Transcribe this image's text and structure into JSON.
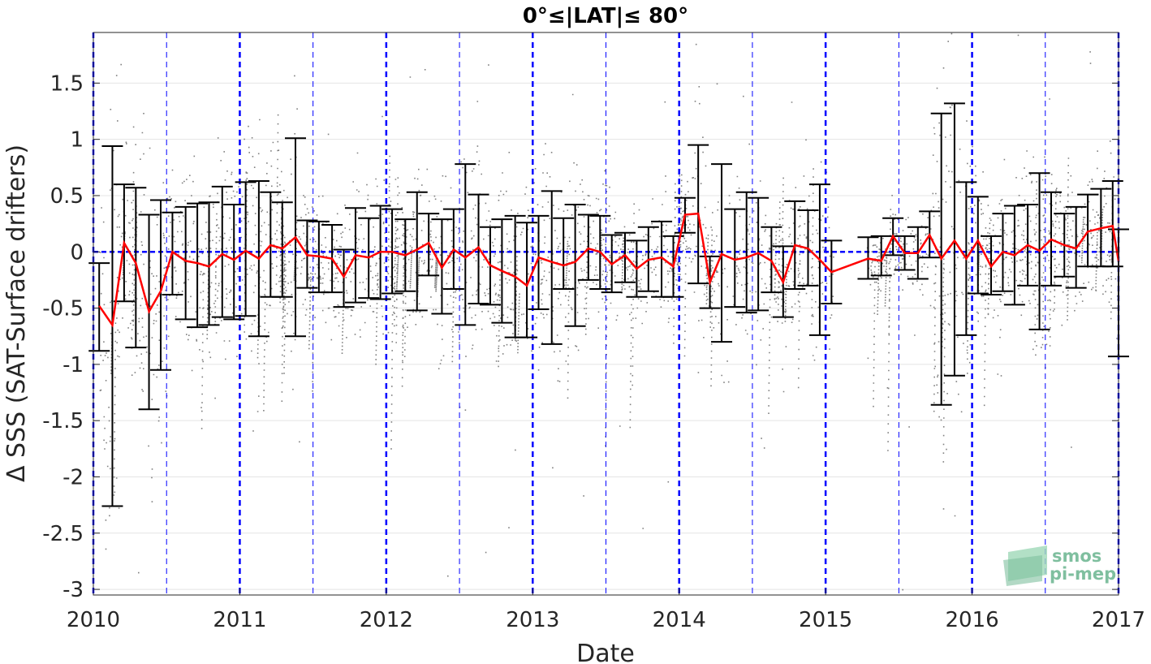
{
  "chart_data": {
    "type": "scatter",
    "title": "0°≤|LAT|≤ 80°",
    "xlabel": "Date",
    "ylabel": "Δ SSS (SAT-Surface drifters)",
    "xlim": [
      2010,
      2017
    ],
    "ylim": [
      -3.05,
      1.95
    ],
    "x_ticks": [
      2010,
      2011,
      2012,
      2013,
      2014,
      2015,
      2016,
      2017
    ],
    "y_ticks": [
      1.5,
      1,
      0.5,
      0,
      -0.5,
      -1,
      -1.5,
      -2,
      -2.5,
      -3
    ],
    "y_tick_labels": [
      "1.5",
      "1",
      "0.5",
      "0",
      "-0.5",
      "-1",
      "-1.5",
      "-2",
      "-2.5",
      "-3"
    ],
    "grid": "horizontal",
    "year_lines": [
      2010,
      2011,
      2012,
      2013,
      2014,
      2015,
      2016,
      2017
    ],
    "half_year_lines": [
      2010.5,
      2011.5,
      2012.5,
      2013.5,
      2014.5,
      2015.5,
      2016.5
    ],
    "zero_line": 0,
    "series": [
      {
        "kind": "monthly_median_with_errorbars",
        "color": "#ff0000",
        "points": [
          {
            "x": 2010.04,
            "y": -0.48,
            "lo": -0.88,
            "hi": -0.1
          },
          {
            "x": 2010.13,
            "y": -0.65,
            "lo": -2.26,
            "hi": 0.94
          },
          {
            "x": 2010.21,
            "y": 0.08,
            "lo": -0.44,
            "hi": 0.6
          },
          {
            "x": 2010.29,
            "y": -0.1,
            "lo": -0.85,
            "hi": 0.57
          },
          {
            "x": 2010.38,
            "y": -0.53,
            "lo": -1.4,
            "hi": 0.33
          },
          {
            "x": 2010.46,
            "y": -0.35,
            "lo": -1.05,
            "hi": 0.46
          },
          {
            "x": 2010.54,
            "y": 0.0,
            "lo": -0.38,
            "hi": 0.35
          },
          {
            "x": 2010.63,
            "y": -0.08,
            "lo": -0.6,
            "hi": 0.4
          },
          {
            "x": 2010.71,
            "y": -0.1,
            "lo": -0.67,
            "hi": 0.43
          },
          {
            "x": 2010.79,
            "y": -0.13,
            "lo": -0.65,
            "hi": 0.44
          },
          {
            "x": 2010.88,
            "y": -0.02,
            "lo": -0.58,
            "hi": 0.58
          },
          {
            "x": 2010.96,
            "y": -0.07,
            "lo": -0.6,
            "hi": 0.42
          },
          {
            "x": 2011.04,
            "y": 0.01,
            "lo": -0.57,
            "hi": 0.62
          },
          {
            "x": 2011.13,
            "y": -0.06,
            "lo": -0.75,
            "hi": 0.63
          },
          {
            "x": 2011.21,
            "y": 0.06,
            "lo": -0.4,
            "hi": 0.53
          },
          {
            "x": 2011.29,
            "y": 0.03,
            "lo": -0.4,
            "hi": 0.44
          },
          {
            "x": 2011.38,
            "y": 0.13,
            "lo": -0.75,
            "hi": 1.01
          },
          {
            "x": 2011.46,
            "y": -0.03,
            "lo": -0.32,
            "hi": 0.28
          },
          {
            "x": 2011.54,
            "y": -0.04,
            "lo": -0.36,
            "hi": 0.27
          },
          {
            "x": 2011.63,
            "y": -0.06,
            "lo": -0.36,
            "hi": 0.24
          },
          {
            "x": 2011.71,
            "y": -0.22,
            "lo": -0.49,
            "hi": 0.02
          },
          {
            "x": 2011.79,
            "y": -0.03,
            "lo": -0.45,
            "hi": 0.39
          },
          {
            "x": 2011.88,
            "y": -0.05,
            "lo": -0.41,
            "hi": 0.3
          },
          {
            "x": 2011.96,
            "y": 0.0,
            "lo": -0.42,
            "hi": 0.41
          },
          {
            "x": 2012.04,
            "y": 0.0,
            "lo": -0.37,
            "hi": 0.38
          },
          {
            "x": 2012.13,
            "y": -0.03,
            "lo": -0.35,
            "hi": 0.29
          },
          {
            "x": 2012.21,
            "y": 0.02,
            "lo": -0.52,
            "hi": 0.53
          },
          {
            "x": 2012.29,
            "y": 0.08,
            "lo": -0.21,
            "hi": 0.34
          },
          {
            "x": 2012.38,
            "y": -0.14,
            "lo": -0.55,
            "hi": 0.29
          },
          {
            "x": 2012.46,
            "y": 0.02,
            "lo": -0.33,
            "hi": 0.38
          },
          {
            "x": 2012.54,
            "y": -0.05,
            "lo": -0.65,
            "hi": 0.78
          },
          {
            "x": 2012.63,
            "y": 0.04,
            "lo": -0.46,
            "hi": 0.51
          },
          {
            "x": 2012.71,
            "y": -0.12,
            "lo": -0.47,
            "hi": 0.22
          },
          {
            "x": 2012.79,
            "y": -0.17,
            "lo": -0.63,
            "hi": 0.29
          },
          {
            "x": 2012.88,
            "y": -0.22,
            "lo": -0.76,
            "hi": 0.32
          },
          {
            "x": 2012.96,
            "y": -0.3,
            "lo": -0.76,
            "hi": 0.26
          },
          {
            "x": 2013.04,
            "y": -0.05,
            "lo": -0.51,
            "hi": 0.32
          },
          {
            "x": 2013.13,
            "y": -0.09,
            "lo": -0.82,
            "hi": 0.54
          },
          {
            "x": 2013.21,
            "y": -0.12,
            "lo": -0.33,
            "hi": 0.3
          },
          {
            "x": 2013.29,
            "y": -0.09,
            "lo": -0.66,
            "hi": 0.42
          },
          {
            "x": 2013.38,
            "y": 0.03,
            "lo": -0.25,
            "hi": 0.33
          },
          {
            "x": 2013.46,
            "y": 0.0,
            "lo": -0.33,
            "hi": 0.32
          },
          {
            "x": 2013.54,
            "y": -0.11,
            "lo": -0.36,
            "hi": 0.15
          },
          {
            "x": 2013.63,
            "y": -0.03,
            "lo": -0.27,
            "hi": 0.17
          },
          {
            "x": 2013.71,
            "y": -0.15,
            "lo": -0.4,
            "hi": 0.1
          },
          {
            "x": 2013.79,
            "y": -0.07,
            "lo": -0.35,
            "hi": 0.22
          },
          {
            "x": 2013.88,
            "y": -0.05,
            "lo": -0.4,
            "hi": 0.27
          },
          {
            "x": 2013.96,
            "y": -0.13,
            "lo": -0.4,
            "hi": 0.14
          },
          {
            "x": 2014.04,
            "y": 0.33,
            "lo": 0.17,
            "hi": 0.48
          },
          {
            "x": 2014.13,
            "y": 0.34,
            "lo": -0.28,
            "hi": 0.95
          },
          {
            "x": 2014.21,
            "y": -0.27,
            "lo": -0.5,
            "hi": -0.04
          },
          {
            "x": 2014.29,
            "y": -0.02,
            "lo": -0.8,
            "hi": 0.78
          },
          {
            "x": 2014.38,
            "y": -0.07,
            "lo": -0.49,
            "hi": 0.38
          },
          {
            "x": 2014.46,
            "y": -0.05,
            "lo": -0.54,
            "hi": 0.53
          },
          {
            "x": 2014.54,
            "y": -0.01,
            "lo": -0.52,
            "hi": 0.48
          },
          {
            "x": 2014.63,
            "y": -0.08,
            "lo": -0.36,
            "hi": 0.22
          },
          {
            "x": 2014.71,
            "y": -0.27,
            "lo": -0.58,
            "hi": 0.05
          },
          {
            "x": 2014.79,
            "y": 0.06,
            "lo": -0.33,
            "hi": 0.45
          },
          {
            "x": 2014.88,
            "y": 0.03,
            "lo": -0.3,
            "hi": 0.37
          },
          {
            "x": 2014.96,
            "y": -0.07,
            "lo": -0.74,
            "hi": 0.6
          },
          {
            "x": 2015.04,
            "y": -0.18,
            "lo": -0.46,
            "hi": 0.1
          },
          {
            "x": 2015.29,
            "y": -0.06,
            "lo": -0.24,
            "hi": 0.13
          },
          {
            "x": 2015.38,
            "y": -0.08,
            "lo": -0.21,
            "hi": 0.14
          },
          {
            "x": 2015.46,
            "y": 0.14,
            "lo": -0.03,
            "hi": 0.3
          },
          {
            "x": 2015.54,
            "y": -0.01,
            "lo": -0.16,
            "hi": 0.14
          },
          {
            "x": 2015.63,
            "y": -0.01,
            "lo": -0.24,
            "hi": 0.22
          },
          {
            "x": 2015.71,
            "y": 0.15,
            "lo": -0.05,
            "hi": 0.36
          },
          {
            "x": 2015.79,
            "y": -0.06,
            "lo": -1.36,
            "hi": 1.23
          },
          {
            "x": 2015.88,
            "y": 0.1,
            "lo": -1.1,
            "hi": 1.32
          },
          {
            "x": 2015.96,
            "y": -0.06,
            "lo": -0.74,
            "hi": 0.62
          },
          {
            "x": 2016.04,
            "y": 0.1,
            "lo": -0.37,
            "hi": 0.49
          },
          {
            "x": 2016.13,
            "y": -0.13,
            "lo": -0.38,
            "hi": 0.14
          },
          {
            "x": 2016.21,
            "y": 0.0,
            "lo": -0.35,
            "hi": 0.34
          },
          {
            "x": 2016.29,
            "y": -0.03,
            "lo": -0.47,
            "hi": 0.41
          },
          {
            "x": 2016.38,
            "y": 0.06,
            "lo": -0.3,
            "hi": 0.42
          },
          {
            "x": 2016.46,
            "y": 0.01,
            "lo": -0.69,
            "hi": 0.7
          },
          {
            "x": 2016.54,
            "y": 0.11,
            "lo": -0.3,
            "hi": 0.53
          },
          {
            "x": 2016.63,
            "y": 0.06,
            "lo": -0.22,
            "hi": 0.34
          },
          {
            "x": 2016.71,
            "y": 0.03,
            "lo": -0.32,
            "hi": 0.4
          },
          {
            "x": 2016.79,
            "y": 0.18,
            "lo": -0.13,
            "hi": 0.51
          },
          {
            "x": 2016.88,
            "y": 0.21,
            "lo": -0.13,
            "hi": 0.56
          },
          {
            "x": 2016.96,
            "y": 0.23,
            "lo": -0.13,
            "hi": 0.63
          },
          {
            "x": 2017.0,
            "y": -0.08,
            "lo": -0.93,
            "hi": 0.2
          }
        ]
      },
      {
        "kind": "individual_differences",
        "color": "#808080"
      }
    ]
  },
  "logo": {
    "line1": "smos",
    "line2": "pi-mep",
    "color": "#7fbf9f"
  }
}
